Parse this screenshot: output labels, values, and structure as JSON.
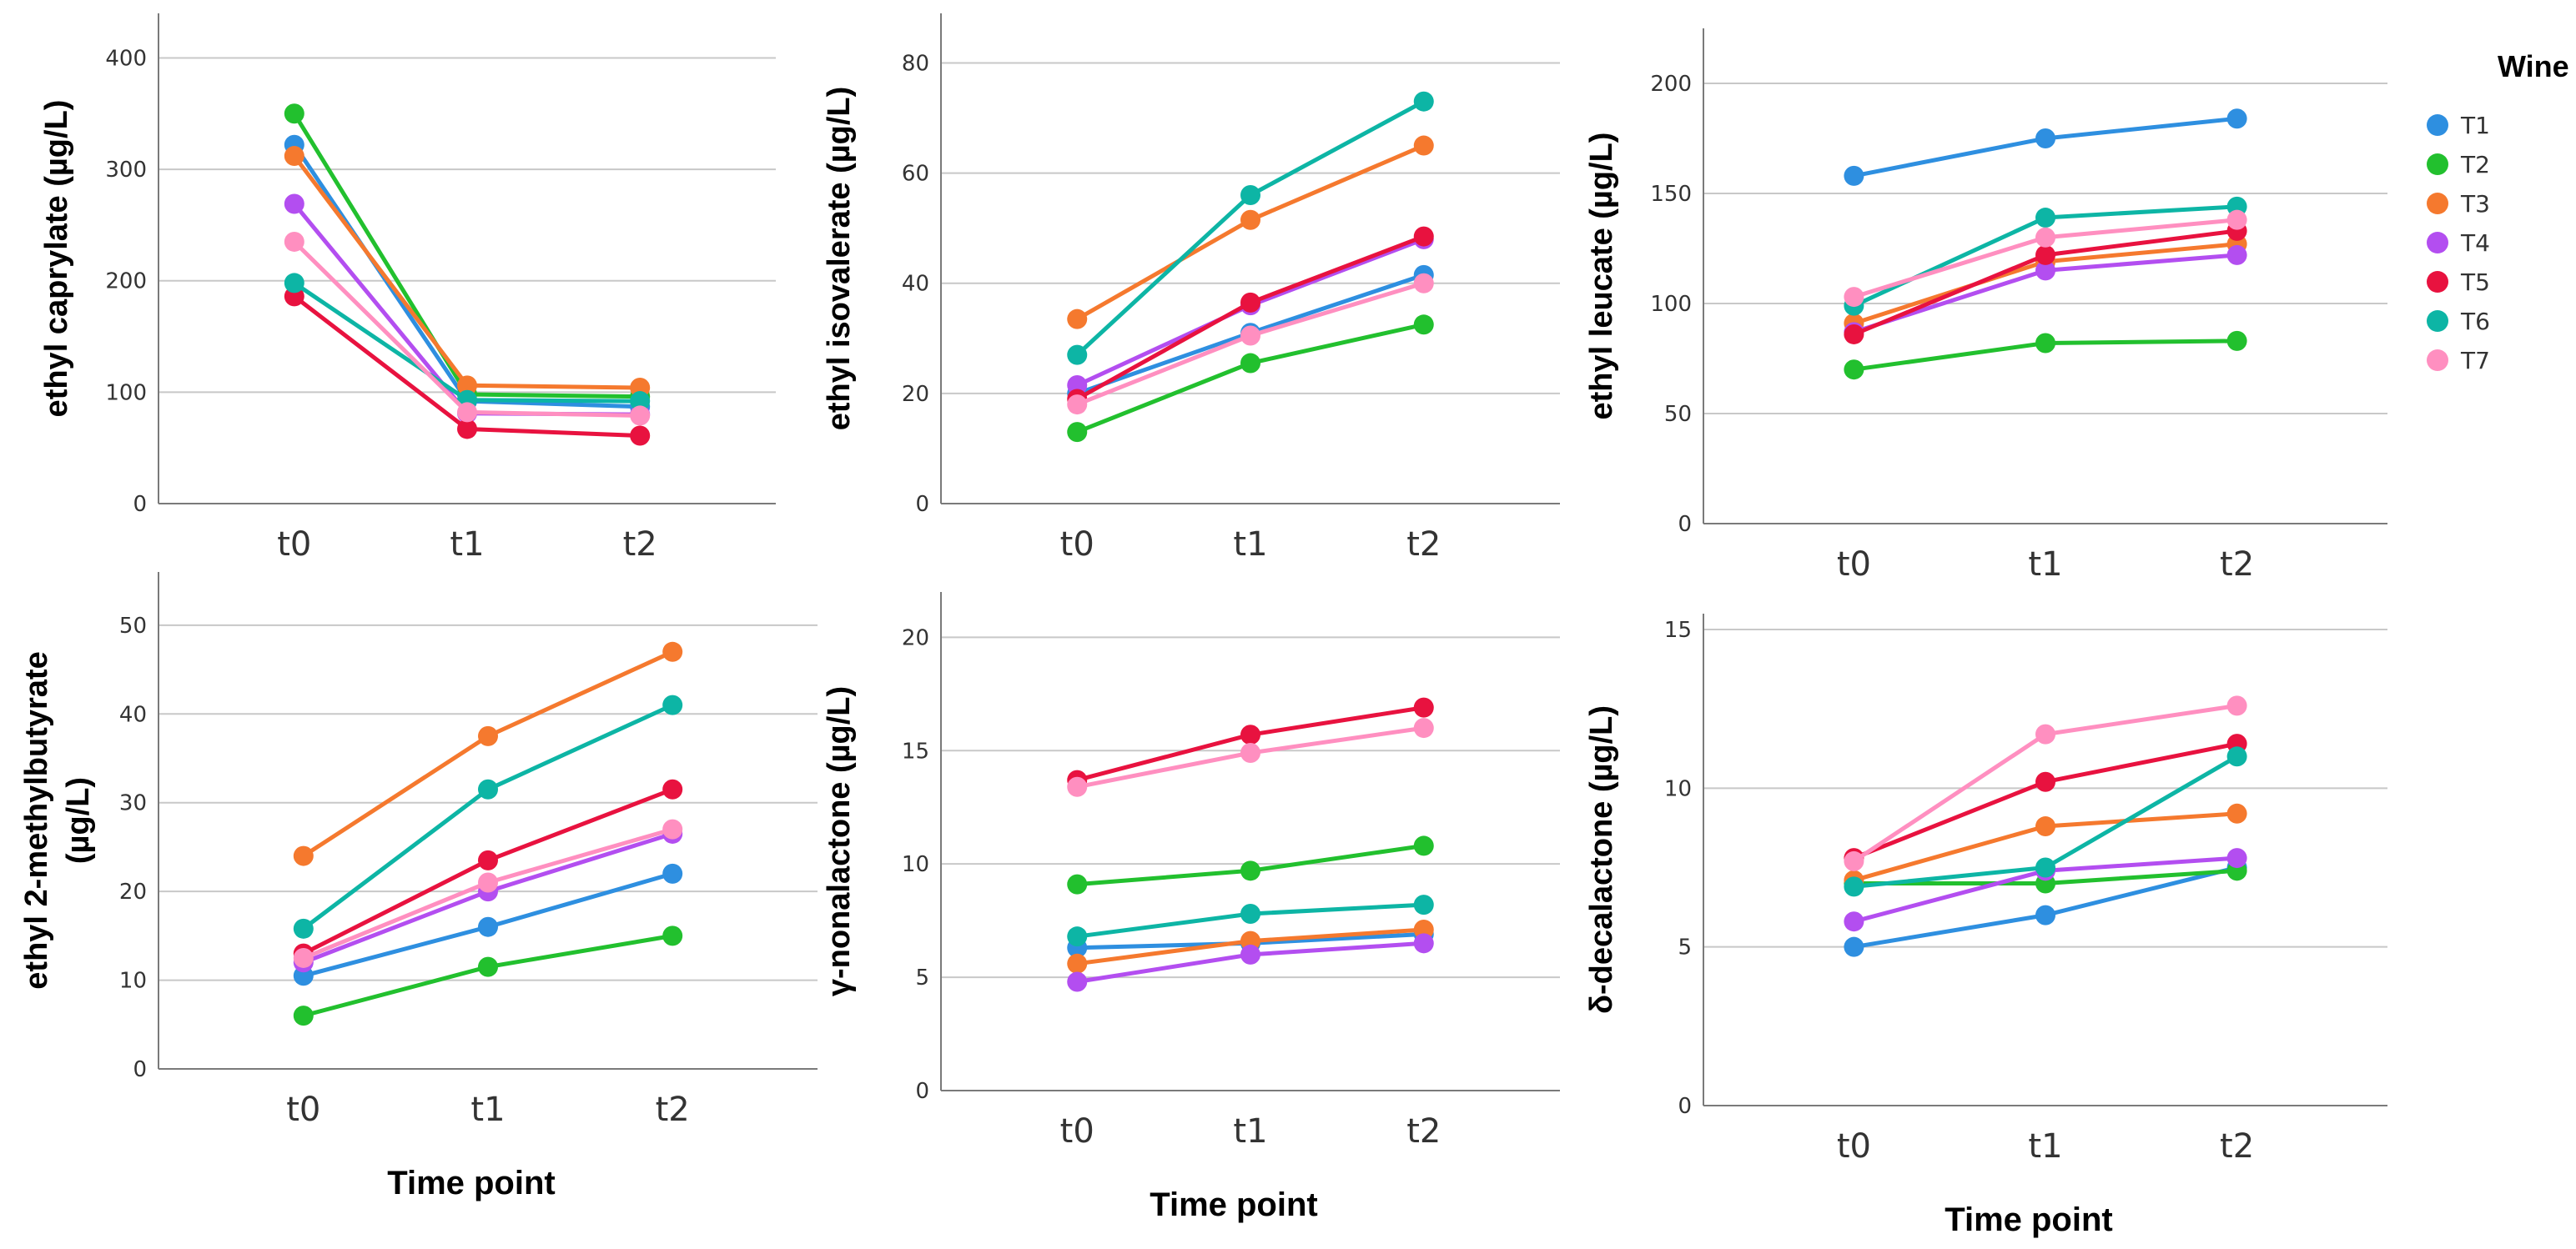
{
  "legend": {
    "title": "Wine",
    "entries": [
      {
        "name": "T1",
        "color": "#2e8fe0"
      },
      {
        "name": "T2",
        "color": "#22c02e"
      },
      {
        "name": "T3",
        "color": "#f5792e"
      },
      {
        "name": "T4",
        "color": "#b34ef0"
      },
      {
        "name": "T5",
        "color": "#e8123f"
      },
      {
        "name": "T6",
        "color": "#0db5a5"
      },
      {
        "name": "T7",
        "color": "#ff8fc0"
      }
    ]
  },
  "chart_data": [
    {
      "type": "line",
      "ylabel": "ethyl caprylate (µg/L)",
      "xlabel": "",
      "categories": [
        "t0",
        "t1",
        "t2"
      ],
      "ylim": [
        0,
        440
      ],
      "yticks": [
        0,
        100,
        200,
        300,
        400
      ],
      "series": [
        {
          "name": "T1",
          "values": [
            322,
            92,
            87
          ]
        },
        {
          "name": "T2",
          "values": [
            350,
            98,
            96
          ]
        },
        {
          "name": "T3",
          "values": [
            312,
            106,
            104
          ]
        },
        {
          "name": "T4",
          "values": [
            269,
            81,
            80
          ]
        },
        {
          "name": "T5",
          "values": [
            186,
            67,
            61
          ]
        },
        {
          "name": "T6",
          "values": [
            198,
            93,
            92
          ]
        },
        {
          "name": "T7",
          "values": [
            235,
            82,
            79
          ]
        }
      ]
    },
    {
      "type": "line",
      "ylabel": "ethyl isovalerate (µg/L)",
      "xlabel": "",
      "categories": [
        "t0",
        "t1",
        "t2"
      ],
      "ylim": [
        0,
        89
      ],
      "yticks": [
        0,
        20,
        40,
        60,
        80
      ],
      "series": [
        {
          "name": "T1",
          "values": [
            20,
            31,
            41.5
          ]
        },
        {
          "name": "T2",
          "values": [
            13,
            25.5,
            32.5
          ]
        },
        {
          "name": "T3",
          "values": [
            33.5,
            51.5,
            65
          ]
        },
        {
          "name": "T4",
          "values": [
            21.5,
            36,
            48
          ]
        },
        {
          "name": "T5",
          "values": [
            19,
            36.5,
            48.5
          ]
        },
        {
          "name": "T6",
          "values": [
            27,
            56,
            73
          ]
        },
        {
          "name": "T7",
          "values": [
            18,
            30.5,
            40
          ]
        }
      ]
    },
    {
      "type": "line",
      "ylabel": "ethyl leucate (µg/L)",
      "xlabel": "",
      "categories": [
        "t0",
        "t1",
        "t2"
      ],
      "ylim": [
        0,
        225
      ],
      "yticks": [
        0,
        50,
        100,
        150,
        200
      ],
      "series": [
        {
          "name": "T1",
          "values": [
            158,
            175,
            184
          ]
        },
        {
          "name": "T2",
          "values": [
            70,
            82,
            83
          ]
        },
        {
          "name": "T3",
          "values": [
            91,
            119,
            127
          ]
        },
        {
          "name": "T4",
          "values": [
            87,
            115,
            122
          ]
        },
        {
          "name": "T5",
          "values": [
            86,
            122,
            133
          ]
        },
        {
          "name": "T6",
          "values": [
            99,
            139,
            144
          ]
        },
        {
          "name": "T7",
          "values": [
            103,
            130,
            138
          ]
        }
      ]
    },
    {
      "type": "line",
      "ylabel": "ethyl 2-methylbutyrate (µg/L)",
      "xlabel": "Time point",
      "categories": [
        "t0",
        "t1",
        "t2"
      ],
      "ylim": [
        0,
        56
      ],
      "yticks": [
        0,
        10,
        20,
        30,
        40,
        50
      ],
      "series": [
        {
          "name": "T1",
          "values": [
            10.5,
            16,
            22
          ]
        },
        {
          "name": "T2",
          "values": [
            6,
            11.5,
            15
          ]
        },
        {
          "name": "T3",
          "values": [
            24,
            37.5,
            47
          ]
        },
        {
          "name": "T4",
          "values": [
            12,
            20,
            26.5
          ]
        },
        {
          "name": "T5",
          "values": [
            13,
            23.5,
            31.5
          ]
        },
        {
          "name": "T6",
          "values": [
            15.8,
            31.5,
            41
          ]
        },
        {
          "name": "T7",
          "values": [
            12.5,
            21,
            27
          ]
        }
      ]
    },
    {
      "type": "line",
      "ylabel": "γ-nonalactone (µg/L)",
      "xlabel": "Time point",
      "categories": [
        "t0",
        "t1",
        "t2"
      ],
      "ylim": [
        0,
        22
      ],
      "yticks": [
        0,
        5,
        10,
        15,
        20
      ],
      "series": [
        {
          "name": "T1",
          "values": [
            6.3,
            6.5,
            6.9
          ]
        },
        {
          "name": "T2",
          "values": [
            9.1,
            9.7,
            10.8
          ]
        },
        {
          "name": "T3",
          "values": [
            5.6,
            6.6,
            7.1
          ]
        },
        {
          "name": "T4",
          "values": [
            4.8,
            6.0,
            6.5
          ]
        },
        {
          "name": "T5",
          "values": [
            13.7,
            15.7,
            16.9
          ]
        },
        {
          "name": "T6",
          "values": [
            6.8,
            7.8,
            8.2
          ]
        },
        {
          "name": "T7",
          "values": [
            13.4,
            14.9,
            16
          ]
        }
      ]
    },
    {
      "type": "line",
      "ylabel": "δ-decalactone (µg/L)",
      "xlabel": "Time point",
      "categories": [
        "t0",
        "t1",
        "t2"
      ],
      "ylim": [
        0,
        15.5
      ],
      "yticks": [
        0,
        5,
        10,
        15
      ],
      "series": [
        {
          "name": "T1",
          "values": [
            5.0,
            6.0,
            7.5
          ]
        },
        {
          "name": "T2",
          "values": [
            7.0,
            7.0,
            7.4
          ]
        },
        {
          "name": "T3",
          "values": [
            7.1,
            8.8,
            9.2
          ]
        },
        {
          "name": "T4",
          "values": [
            5.8,
            7.4,
            7.8
          ]
        },
        {
          "name": "T5",
          "values": [
            7.8,
            10.2,
            11.4
          ]
        },
        {
          "name": "T6",
          "values": [
            6.9,
            7.5,
            11.0
          ]
        },
        {
          "name": "T7",
          "values": [
            7.7,
            11.7,
            12.6
          ]
        }
      ]
    }
  ]
}
